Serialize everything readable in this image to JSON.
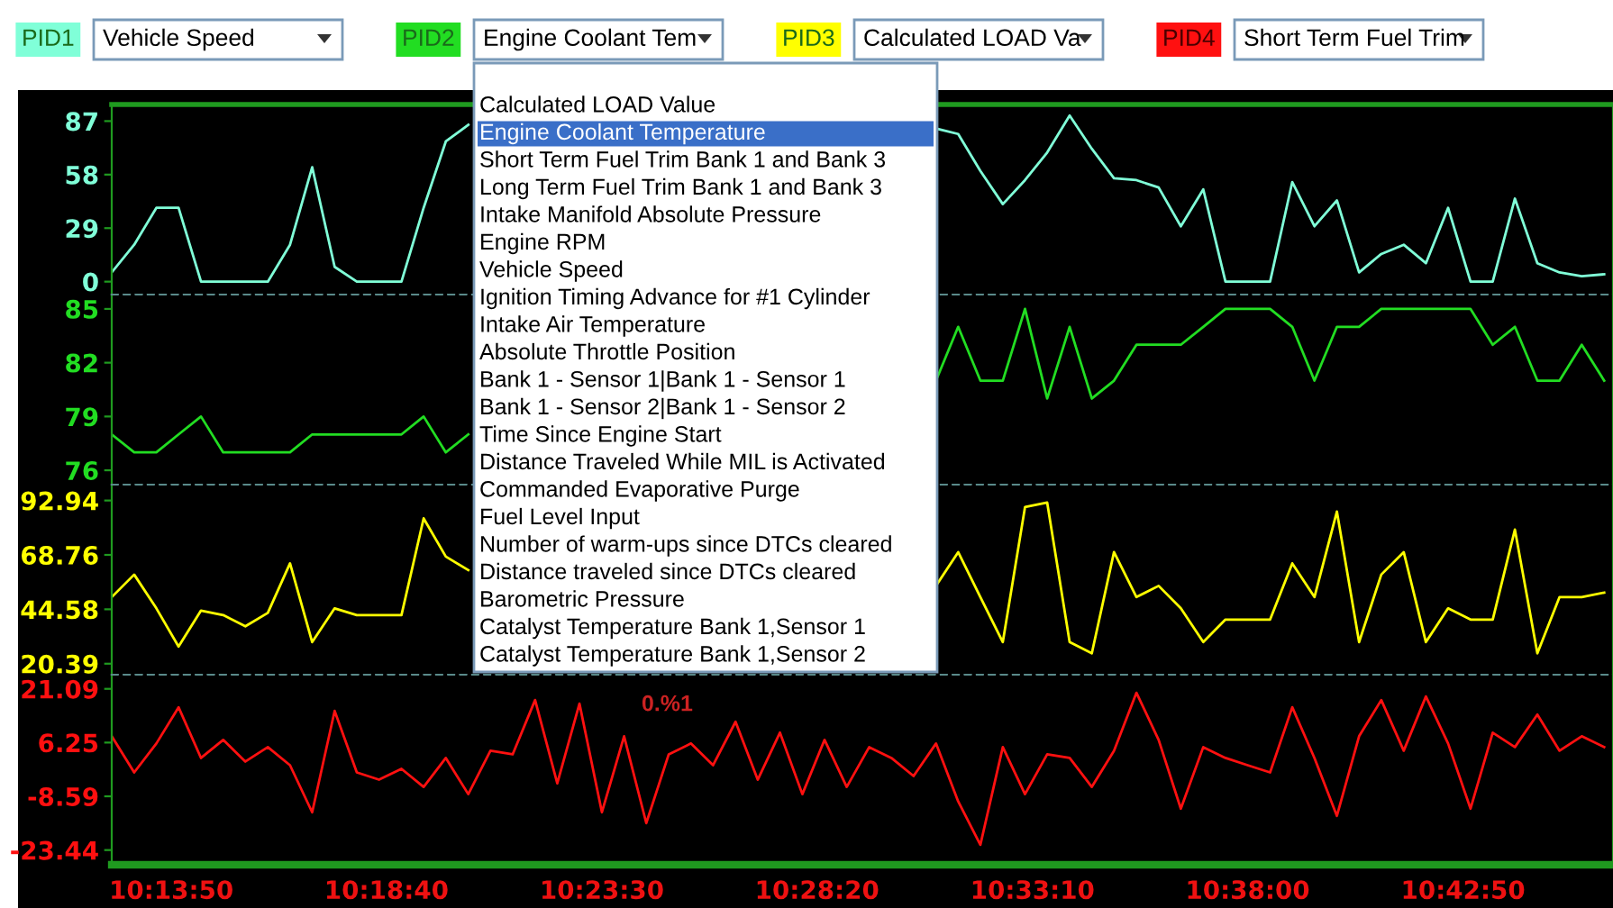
{
  "chart_data": [
    {
      "type": "line",
      "legend": "top",
      "legend_title": "PID1",
      "tick_labels": "y",
      "x": [
        10.2083,
        10.2167,
        10.225,
        10.2333,
        10.2417,
        10.25,
        10.2583,
        10.2667,
        10.275,
        10.2833,
        10.2917,
        10.3,
        10.3083,
        10.3167,
        10.325,
        10.3333,
        10.3417,
        10.35,
        10.3583,
        10.3667,
        10.375,
        10.3833,
        10.3917,
        10.4,
        10.4083,
        10.4167,
        10.425,
        10.4333,
        10.4417,
        10.45,
        10.4583,
        10.4667,
        10.475,
        10.4833,
        10.4917,
        10.5,
        10.5083,
        10.5167,
        10.525,
        10.5333,
        10.5417,
        10.55,
        10.5583,
        10.5667,
        10.575,
        10.5833,
        10.5917,
        10.6,
        10.6083,
        10.6167,
        10.625,
        10.6333,
        10.6417,
        10.65,
        10.6583,
        10.6667,
        10.675,
        10.6833,
        10.6917,
        10.7,
        10.7083,
        10.7167,
        10.725,
        10.7333,
        10.7417,
        10.75,
        10.7583,
        10.7667
      ],
      "xlim": [
        10.2083,
        10.77
      ],
      "ylim": [
        -7,
        96
      ],
      "yticks": [
        0,
        29,
        58,
        87
      ],
      "series": [
        {
          "name": "Vehicle Speed",
          "color": "#80ffd8",
          "values": [
            5,
            20,
            40,
            40,
            0,
            0,
            0,
            0,
            20,
            62,
            8,
            0,
            0,
            0,
            40,
            76,
            85,
            null,
            null,
            null,
            null,
            null,
            null,
            null,
            null,
            null,
            null,
            null,
            null,
            null,
            null,
            null,
            null,
            null,
            null,
            null,
            null,
            83,
            80,
            60,
            42,
            55,
            70,
            90,
            72,
            56,
            55,
            51,
            30,
            50,
            0,
            0,
            0,
            54,
            30,
            44,
            5,
            15,
            20,
            10,
            40,
            0,
            0,
            45,
            10,
            5,
            3,
            4
          ]
        }
      ]
    },
    {
      "type": "line",
      "legend": "top",
      "legend_title": "PID2",
      "tick_labels": "y",
      "x": [
        10.2083,
        10.2167,
        10.225,
        10.2333,
        10.2417,
        10.25,
        10.2583,
        10.2667,
        10.275,
        10.2833,
        10.2917,
        10.3,
        10.3083,
        10.3167,
        10.325,
        10.3333,
        10.3417,
        10.35,
        10.3583,
        10.3667,
        10.375,
        10.3833,
        10.3917,
        10.4,
        10.4083,
        10.4167,
        10.425,
        10.4333,
        10.4417,
        10.45,
        10.4583,
        10.4667,
        10.475,
        10.4833,
        10.4917,
        10.5,
        10.5083,
        10.5167,
        10.525,
        10.5333,
        10.5417,
        10.55,
        10.5583,
        10.5667,
        10.575,
        10.5833,
        10.5917,
        10.6,
        10.6083,
        10.6167,
        10.625,
        10.6333,
        10.6417,
        10.65,
        10.6583,
        10.6667,
        10.675,
        10.6833,
        10.6917,
        10.7,
        10.7083,
        10.7167,
        10.725,
        10.7333,
        10.7417,
        10.75,
        10.7583,
        10.7667
      ],
      "xlim": [
        10.2083,
        10.77
      ],
      "ylim": [
        75.2,
        85.8
      ],
      "yticks": [
        76,
        79,
        82,
        85
      ],
      "series": [
        {
          "name": "Engine Coolant Tem",
          "color": "#22dd22",
          "values": [
            78,
            77,
            77,
            78,
            79,
            77,
            77,
            77,
            77,
            78,
            78,
            78,
            78,
            78,
            79,
            77,
            78,
            null,
            null,
            null,
            null,
            null,
            null,
            null,
            null,
            null,
            null,
            null,
            null,
            null,
            null,
            null,
            null,
            null,
            null,
            null,
            null,
            81,
            84,
            81,
            81,
            85,
            80,
            84,
            80,
            81,
            83,
            83,
            83,
            84,
            85,
            85,
            85,
            84,
            81,
            84,
            84,
            85,
            85,
            85,
            85,
            85,
            83,
            84,
            81,
            81,
            83,
            81
          ]
        }
      ],
      "annotations": [
        "Calculated LOAD Value",
        "Engine Coolant Temperature",
        "Short Term Fuel Trim Bank 1 and Bank 3",
        "Long Term Fuel Trim Bank 1 and Bank 3",
        "Intake Manifold Absolute Pressure",
        "Engine RPM",
        "Vehicle Speed",
        "Ignition Timing Advance for #1 Cylinder",
        "Intake Air Temperature",
        "Absolute Throttle Position",
        "Bank 1 - Sensor 1|Bank 1 - Sensor 1",
        "Bank 1 - Sensor 2|Bank 1 - Sensor 2",
        "Time Since Engine Start",
        "Distance Traveled While MIL is Activated",
        "Commanded Evaporative Purge",
        "Fuel Level Input",
        "Number of warm-ups since DTCs cleared",
        "Distance traveled since DTCs cleared",
        "Barometric Pressure",
        "Catalyst Temperature Bank 1,Sensor 1",
        "Catalyst Temperature Bank 1,Sensor 2"
      ]
    },
    {
      "type": "line",
      "legend": "top",
      "legend_title": "PID3",
      "tick_labels": "y",
      "x": [
        10.2083,
        10.2167,
        10.225,
        10.2333,
        10.2417,
        10.25,
        10.2583,
        10.2667,
        10.275,
        10.2833,
        10.2917,
        10.3,
        10.3083,
        10.3167,
        10.325,
        10.3333,
        10.3417,
        10.35,
        10.3583,
        10.3667,
        10.375,
        10.3833,
        10.3917,
        10.4,
        10.4083,
        10.4167,
        10.425,
        10.4333,
        10.4417,
        10.45,
        10.4583,
        10.4667,
        10.475,
        10.4833,
        10.4917,
        10.5,
        10.5083,
        10.5167,
        10.525,
        10.5333,
        10.5417,
        10.55,
        10.5583,
        10.5667,
        10.575,
        10.5833,
        10.5917,
        10.6,
        10.6083,
        10.6167,
        10.625,
        10.6333,
        10.6417,
        10.65,
        10.6583,
        10.6667,
        10.675,
        10.6833,
        10.6917,
        10.7,
        10.7083,
        10.7167,
        10.725,
        10.7333,
        10.7417,
        10.75,
        10.7583,
        10.7667
      ],
      "xlim": [
        10.2083,
        10.77
      ],
      "ylim": [
        15.5,
        100
      ],
      "yticks": [
        20.39,
        44.58,
        68.76,
        92.94
      ],
      "series": [
        {
          "name": "Calculated LOAD Va",
          "color": "#ffff00",
          "values": [
            50,
            60,
            45,
            28,
            44,
            42,
            37,
            43,
            65,
            30,
            45,
            42,
            42,
            42,
            85,
            68,
            62,
            null,
            null,
            null,
            null,
            null,
            null,
            null,
            null,
            null,
            null,
            null,
            null,
            null,
            null,
            null,
            null,
            null,
            null,
            null,
            null,
            55,
            70,
            50,
            30,
            90,
            92,
            30,
            25,
            70,
            50,
            55,
            45,
            30,
            40,
            40,
            40,
            65,
            50,
            88,
            30,
            60,
            70,
            30,
            45,
            40,
            40,
            80,
            25,
            50,
            50,
            52
          ]
        }
      ]
    },
    {
      "type": "line",
      "legend": "top",
      "legend_title": "PID4",
      "x": [
        10.2083,
        10.2167,
        10.225,
        10.2333,
        10.2417,
        10.25,
        10.2583,
        10.2667,
        10.275,
        10.2833,
        10.2917,
        10.3,
        10.3083,
        10.3167,
        10.325,
        10.3333,
        10.3417,
        10.35,
        10.3583,
        10.3667,
        10.375,
        10.3833,
        10.3917,
        10.4,
        10.4083,
        10.4167,
        10.425,
        10.4333,
        10.4417,
        10.45,
        10.4583,
        10.4667,
        10.475,
        10.4833,
        10.4917,
        10.5,
        10.5083,
        10.5167,
        10.525,
        10.5333,
        10.5417,
        10.55,
        10.5583,
        10.5667,
        10.575,
        10.5833,
        10.5917,
        10.6,
        10.6083,
        10.6167,
        10.625,
        10.6333,
        10.6417,
        10.65,
        10.6583,
        10.6667,
        10.675,
        10.6833,
        10.6917,
        10.7,
        10.7083,
        10.7167,
        10.725,
        10.7333,
        10.7417,
        10.75,
        10.7583,
        10.7667
      ],
      "xlim": [
        10.2083,
        10.77
      ],
      "xticks": [
        {
          "value": 10.2306,
          "label": "10:13:50"
        },
        {
          "value": 10.3111,
          "label": "10:18:40"
        },
        {
          "value": 10.3917,
          "label": "10:23:30"
        },
        {
          "value": 10.4722,
          "label": "10:28:20"
        },
        {
          "value": 10.5528,
          "label": "10:33:10"
        },
        {
          "value": 10.6333,
          "label": "10:38:00"
        },
        {
          "value": 10.7139,
          "label": "10:42:50"
        }
      ],
      "ylim": [
        -27.5,
        25
      ],
      "yticks": [
        -23.44,
        -8.59,
        6.25,
        21.09
      ],
      "series": [
        {
          "name": "Short Term Fuel Trim",
          "color": "#ff1010",
          "values": [
            8,
            -2,
            6,
            16,
            2,
            7,
            1,
            5,
            0,
            -13,
            15,
            -2,
            -4,
            -1,
            -6,
            2,
            -8,
            4,
            3,
            18,
            -5,
            17,
            -13,
            8,
            -16,
            3,
            6,
            0,
            12,
            -4,
            9,
            -8,
            7,
            -6,
            5,
            2,
            -3,
            6,
            -10,
            -22,
            5,
            -8,
            3,
            2,
            -6,
            4,
            20,
            7,
            -12,
            5,
            2,
            0,
            -2,
            16,
            2,
            -14,
            8,
            18,
            4,
            19,
            6,
            -12,
            9,
            5,
            14,
            4,
            8,
            5
          ]
        }
      ],
      "annotations": [
        "0.%1"
      ]
    }
  ]
}
